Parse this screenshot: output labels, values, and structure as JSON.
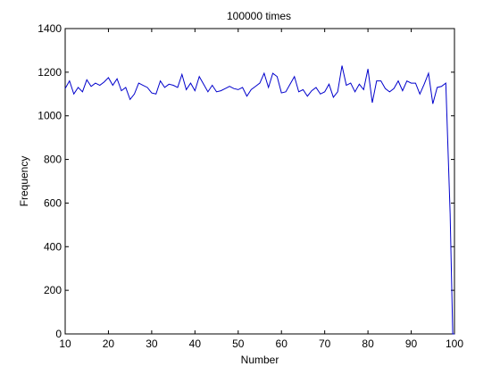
{
  "chart_data": {
    "type": "line",
    "title": "100000 times",
    "xlabel": "Number",
    "ylabel": "Frequency",
    "xlim": [
      10,
      100
    ],
    "ylim": [
      0,
      1400
    ],
    "grid": false,
    "x_ticks": [
      10,
      20,
      30,
      40,
      50,
      60,
      70,
      80,
      90,
      100
    ],
    "y_ticks": [
      0,
      200,
      400,
      600,
      800,
      1000,
      1200,
      1400
    ],
    "line_color": "#0000cc",
    "series": [
      {
        "x": [
          10,
          11,
          12,
          13,
          14,
          15,
          16,
          17,
          18,
          19,
          20,
          21,
          22,
          23,
          24,
          25,
          26,
          27,
          28,
          29,
          30,
          31,
          32,
          33,
          34,
          35,
          36,
          37,
          38,
          39,
          40,
          41,
          42,
          43,
          44,
          45,
          46,
          47,
          48,
          49,
          50,
          51,
          52,
          53,
          54,
          55,
          56,
          57,
          58,
          59,
          60,
          61,
          62,
          63,
          64,
          65,
          66,
          67,
          68,
          69,
          70,
          71,
          72,
          73,
          74,
          75,
          76,
          77,
          78,
          79,
          80,
          81,
          82,
          83,
          84,
          85,
          86,
          87,
          88,
          89,
          90,
          91,
          92,
          93,
          94,
          95,
          96,
          97,
          98,
          99,
          99.6,
          100
        ],
        "values": [
          1125,
          1160,
          1100,
          1130,
          1110,
          1165,
          1135,
          1150,
          1140,
          1155,
          1175,
          1140,
          1170,
          1115,
          1130,
          1075,
          1100,
          1150,
          1140,
          1130,
          1105,
          1100,
          1160,
          1130,
          1145,
          1140,
          1130,
          1190,
          1120,
          1150,
          1115,
          1180,
          1145,
          1110,
          1140,
          1110,
          1115,
          1125,
          1135,
          1125,
          1120,
          1130,
          1090,
          1120,
          1135,
          1150,
          1195,
          1130,
          1195,
          1180,
          1105,
          1110,
          1145,
          1180,
          1110,
          1120,
          1090,
          1115,
          1130,
          1100,
          1110,
          1145,
          1085,
          1110,
          1230,
          1140,
          1150,
          1110,
          1145,
          1120,
          1215,
          1060,
          1160,
          1160,
          1125,
          1110,
          1125,
          1160,
          1115,
          1160,
          1150,
          1150,
          1100,
          1145,
          1195,
          1055,
          1130,
          1135,
          1150,
          550,
          0,
          0
        ]
      }
    ]
  }
}
